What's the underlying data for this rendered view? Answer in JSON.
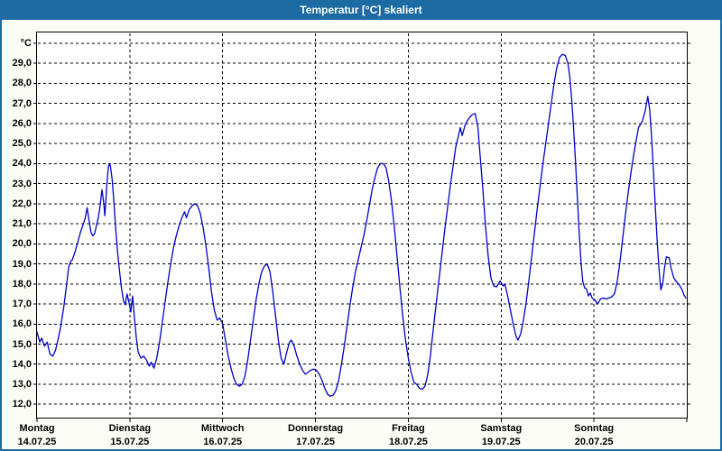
{
  "window": {
    "title": "Temperatur [°C] skaliert"
  },
  "colors": {
    "header_bg": "#1c6ba3",
    "frame": "#1c6ba3",
    "title_text": "#ffffff",
    "line": "#0000cc",
    "grid": "#000000",
    "plot_bg": "#ffffff",
    "page_bg": "#fdfdf8",
    "label_text": "#000000"
  },
  "chart_data": {
    "type": "line",
    "title": "Temperatur [°C] skaliert",
    "ylabel_unit": "°C",
    "grid": "dashed",
    "legend_position": "none",
    "ylim": [
      11.3,
      30.6
    ],
    "xlim_days": [
      0,
      7
    ],
    "y_ticks": [
      {
        "value": 12,
        "label": "12,0"
      },
      {
        "value": 13,
        "label": "13,0"
      },
      {
        "value": 14,
        "label": "14,0"
      },
      {
        "value": 15,
        "label": "15,0"
      },
      {
        "value": 16,
        "label": "16,0"
      },
      {
        "value": 17,
        "label": "17,0"
      },
      {
        "value": 18,
        "label": "18,0"
      },
      {
        "value": 19,
        "label": "19,0"
      },
      {
        "value": 20,
        "label": "20,0"
      },
      {
        "value": 21,
        "label": "21,0"
      },
      {
        "value": 22,
        "label": "22,0"
      },
      {
        "value": 23,
        "label": "23,0"
      },
      {
        "value": 24,
        "label": "24,0"
      },
      {
        "value": 25,
        "label": "25,0"
      },
      {
        "value": 26,
        "label": "26,0"
      },
      {
        "value": 27,
        "label": "27,0"
      },
      {
        "value": 28,
        "label": "28,0"
      },
      {
        "value": 29,
        "label": "29,0"
      },
      {
        "value": 30,
        "label": "°C"
      }
    ],
    "x_days": [
      {
        "name": "Montag",
        "date": "14.07.25"
      },
      {
        "name": "Dienstag",
        "date": "15.07.25"
      },
      {
        "name": "Mittwoch",
        "date": "16.07.25"
      },
      {
        "name": "Donnerstag",
        "date": "17.07.25"
      },
      {
        "name": "Freitag",
        "date": "18.07.25"
      },
      {
        "name": "Samstag",
        "date": "19.07.25"
      },
      {
        "name": "Sonntag",
        "date": "20.07.25"
      }
    ],
    "series": [
      {
        "name": "Temperatur",
        "color": "#0000cc",
        "points": [
          [
            0.0,
            15.6
          ],
          [
            0.03,
            15.1
          ],
          [
            0.05,
            15.3
          ],
          [
            0.08,
            14.9
          ],
          [
            0.11,
            15.1
          ],
          [
            0.14,
            14.5
          ],
          [
            0.17,
            14.4
          ],
          [
            0.2,
            14.7
          ],
          [
            0.23,
            15.3
          ],
          [
            0.26,
            16.0
          ],
          [
            0.29,
            16.9
          ],
          [
            0.32,
            18.0
          ],
          [
            0.34,
            18.8
          ],
          [
            0.36,
            19.1
          ],
          [
            0.38,
            19.2
          ],
          [
            0.41,
            19.6
          ],
          [
            0.44,
            20.1
          ],
          [
            0.47,
            20.6
          ],
          [
            0.5,
            21.0
          ],
          [
            0.52,
            21.3
          ],
          [
            0.54,
            21.8
          ],
          [
            0.56,
            21.2
          ],
          [
            0.58,
            20.6
          ],
          [
            0.6,
            20.4
          ],
          [
            0.62,
            20.5
          ],
          [
            0.64,
            20.9
          ],
          [
            0.66,
            21.3
          ],
          [
            0.68,
            21.9
          ],
          [
            0.7,
            22.7
          ],
          [
            0.72,
            22.0
          ],
          [
            0.73,
            21.4
          ],
          [
            0.74,
            22.0
          ],
          [
            0.75,
            22.8
          ],
          [
            0.76,
            23.4
          ],
          [
            0.77,
            23.85
          ],
          [
            0.78,
            24.0
          ],
          [
            0.79,
            23.9
          ],
          [
            0.81,
            23.2
          ],
          [
            0.83,
            22.0
          ],
          [
            0.85,
            20.6
          ],
          [
            0.87,
            19.5
          ],
          [
            0.89,
            18.6
          ],
          [
            0.91,
            17.8
          ],
          [
            0.93,
            17.2
          ],
          [
            0.95,
            16.95
          ],
          [
            0.97,
            17.5
          ],
          [
            0.99,
            17.1
          ],
          [
            1.01,
            16.6
          ],
          [
            1.03,
            17.4
          ],
          [
            1.05,
            16.3
          ],
          [
            1.07,
            15.3
          ],
          [
            1.09,
            14.6
          ],
          [
            1.12,
            14.3
          ],
          [
            1.15,
            14.4
          ],
          [
            1.18,
            14.2
          ],
          [
            1.21,
            13.9
          ],
          [
            1.23,
            14.1
          ],
          [
            1.26,
            13.8
          ],
          [
            1.29,
            14.3
          ],
          [
            1.32,
            15.1
          ],
          [
            1.35,
            16.1
          ],
          [
            1.38,
            17.1
          ],
          [
            1.41,
            18.1
          ],
          [
            1.44,
            19.0
          ],
          [
            1.47,
            19.8
          ],
          [
            1.5,
            20.4
          ],
          [
            1.53,
            20.9
          ],
          [
            1.56,
            21.3
          ],
          [
            1.59,
            21.6
          ],
          [
            1.61,
            21.3
          ],
          [
            1.64,
            21.7
          ],
          [
            1.67,
            21.9
          ],
          [
            1.7,
            22.0
          ],
          [
            1.73,
            21.9
          ],
          [
            1.76,
            21.5
          ],
          [
            1.79,
            20.8
          ],
          [
            1.82,
            19.9
          ],
          [
            1.85,
            18.8
          ],
          [
            1.88,
            17.6
          ],
          [
            1.91,
            16.7
          ],
          [
            1.94,
            16.2
          ],
          [
            1.97,
            16.3
          ],
          [
            2.0,
            16.0
          ],
          [
            2.03,
            15.2
          ],
          [
            2.06,
            14.4
          ],
          [
            2.09,
            13.8
          ],
          [
            2.12,
            13.3
          ],
          [
            2.15,
            13.0
          ],
          [
            2.18,
            12.9
          ],
          [
            2.21,
            13.0
          ],
          [
            2.24,
            13.4
          ],
          [
            2.27,
            14.2
          ],
          [
            2.3,
            15.2
          ],
          [
            2.33,
            16.2
          ],
          [
            2.36,
            17.2
          ],
          [
            2.39,
            18.0
          ],
          [
            2.42,
            18.6
          ],
          [
            2.45,
            18.9
          ],
          [
            2.48,
            19.0
          ],
          [
            2.51,
            18.6
          ],
          [
            2.54,
            17.6
          ],
          [
            2.57,
            16.4
          ],
          [
            2.6,
            15.2
          ],
          [
            2.63,
            14.3
          ],
          [
            2.66,
            14.0
          ],
          [
            2.69,
            14.6
          ],
          [
            2.72,
            15.1
          ],
          [
            2.74,
            15.2
          ],
          [
            2.77,
            14.9
          ],
          [
            2.8,
            14.4
          ],
          [
            2.83,
            14.0
          ],
          [
            2.86,
            13.7
          ],
          [
            2.89,
            13.5
          ],
          [
            2.92,
            13.6
          ],
          [
            2.95,
            13.7
          ],
          [
            2.98,
            13.75
          ],
          [
            3.01,
            13.7
          ],
          [
            3.04,
            13.5
          ],
          [
            3.07,
            13.2
          ],
          [
            3.1,
            12.8
          ],
          [
            3.13,
            12.5
          ],
          [
            3.16,
            12.4
          ],
          [
            3.19,
            12.45
          ],
          [
            3.22,
            12.7
          ],
          [
            3.25,
            13.2
          ],
          [
            3.28,
            14.0
          ],
          [
            3.31,
            14.9
          ],
          [
            3.34,
            15.9
          ],
          [
            3.37,
            16.9
          ],
          [
            3.4,
            17.8
          ],
          [
            3.43,
            18.6
          ],
          [
            3.46,
            19.2
          ],
          [
            3.49,
            19.8
          ],
          [
            3.52,
            20.4
          ],
          [
            3.55,
            21.1
          ],
          [
            3.58,
            21.9
          ],
          [
            3.61,
            22.7
          ],
          [
            3.64,
            23.3
          ],
          [
            3.67,
            23.8
          ],
          [
            3.7,
            24.0
          ],
          [
            3.73,
            24.0
          ],
          [
            3.76,
            23.8
          ],
          [
            3.79,
            23.1
          ],
          [
            3.82,
            22.1
          ],
          [
            3.85,
            20.8
          ],
          [
            3.88,
            19.3
          ],
          [
            3.91,
            17.8
          ],
          [
            3.94,
            16.4
          ],
          [
            3.97,
            15.2
          ],
          [
            4.0,
            14.3
          ],
          [
            4.03,
            13.6
          ],
          [
            4.06,
            13.1
          ],
          [
            4.09,
            13.0
          ],
          [
            4.12,
            12.8
          ],
          [
            4.15,
            12.75
          ],
          [
            4.18,
            12.9
          ],
          [
            4.21,
            13.5
          ],
          [
            4.24,
            14.5
          ],
          [
            4.27,
            15.8
          ],
          [
            4.3,
            17.0
          ],
          [
            4.33,
            18.2
          ],
          [
            4.36,
            19.4
          ],
          [
            4.39,
            20.6
          ],
          [
            4.42,
            21.7
          ],
          [
            4.45,
            22.8
          ],
          [
            4.48,
            23.8
          ],
          [
            4.51,
            24.8
          ],
          [
            4.54,
            25.4
          ],
          [
            4.56,
            25.8
          ],
          [
            4.58,
            25.4
          ],
          [
            4.61,
            25.9
          ],
          [
            4.63,
            26.1
          ],
          [
            4.66,
            26.3
          ],
          [
            4.69,
            26.45
          ],
          [
            4.72,
            26.5
          ],
          [
            4.75,
            25.8
          ],
          [
            4.77,
            24.6
          ],
          [
            4.8,
            22.9
          ],
          [
            4.83,
            21.0
          ],
          [
            4.86,
            19.4
          ],
          [
            4.89,
            18.3
          ],
          [
            4.92,
            17.9
          ],
          [
            4.95,
            17.85
          ],
          [
            4.99,
            18.15
          ],
          [
            5.02,
            17.9
          ],
          [
            5.04,
            18.0
          ],
          [
            5.07,
            17.4
          ],
          [
            5.1,
            16.7
          ],
          [
            5.13,
            16.0
          ],
          [
            5.16,
            15.4
          ],
          [
            5.18,
            15.2
          ],
          [
            5.21,
            15.5
          ],
          [
            5.24,
            16.2
          ],
          [
            5.27,
            17.1
          ],
          [
            5.3,
            18.2
          ],
          [
            5.33,
            19.4
          ],
          [
            5.36,
            20.6
          ],
          [
            5.39,
            21.8
          ],
          [
            5.42,
            22.9
          ],
          [
            5.45,
            24.0
          ],
          [
            5.48,
            25.0
          ],
          [
            5.51,
            26.0
          ],
          [
            5.54,
            27.0
          ],
          [
            5.57,
            28.0
          ],
          [
            5.6,
            28.8
          ],
          [
            5.63,
            29.3
          ],
          [
            5.66,
            29.45
          ],
          [
            5.69,
            29.4
          ],
          [
            5.72,
            29.0
          ],
          [
            5.74,
            28.3
          ],
          [
            5.76,
            27.2
          ],
          [
            5.78,
            25.8
          ],
          [
            5.8,
            24.2
          ],
          [
            5.82,
            22.4
          ],
          [
            5.84,
            20.6
          ],
          [
            5.86,
            19.1
          ],
          [
            5.88,
            18.1
          ],
          [
            5.9,
            17.8
          ],
          [
            5.92,
            17.75
          ],
          [
            5.94,
            17.4
          ],
          [
            5.96,
            17.55
          ],
          [
            5.98,
            17.3
          ],
          [
            6.01,
            17.2
          ],
          [
            6.04,
            17.0
          ],
          [
            6.07,
            17.25
          ],
          [
            6.1,
            17.3
          ],
          [
            6.13,
            17.25
          ],
          [
            6.16,
            17.3
          ],
          [
            6.19,
            17.35
          ],
          [
            6.22,
            17.5
          ],
          [
            6.25,
            18.1
          ],
          [
            6.28,
            19.1
          ],
          [
            6.31,
            20.3
          ],
          [
            6.34,
            21.5
          ],
          [
            6.37,
            22.6
          ],
          [
            6.4,
            23.6
          ],
          [
            6.43,
            24.5
          ],
          [
            6.46,
            25.3
          ],
          [
            6.48,
            25.8
          ],
          [
            6.5,
            25.95
          ],
          [
            6.52,
            26.1
          ],
          [
            6.55,
            26.6
          ],
          [
            6.58,
            27.35
          ],
          [
            6.6,
            26.7
          ],
          [
            6.62,
            25.4
          ],
          [
            6.64,
            23.7
          ],
          [
            6.66,
            21.9
          ],
          [
            6.68,
            20.2
          ],
          [
            6.7,
            18.8
          ],
          [
            6.72,
            17.7
          ],
          [
            6.74,
            18.0
          ],
          [
            6.76,
            18.8
          ],
          [
            6.78,
            19.35
          ],
          [
            6.81,
            19.3
          ],
          [
            6.83,
            18.8
          ],
          [
            6.86,
            18.3
          ],
          [
            6.89,
            18.1
          ],
          [
            6.92,
            17.95
          ],
          [
            6.95,
            17.7
          ],
          [
            6.97,
            17.45
          ],
          [
            6.99,
            17.3
          ]
        ]
      }
    ]
  }
}
